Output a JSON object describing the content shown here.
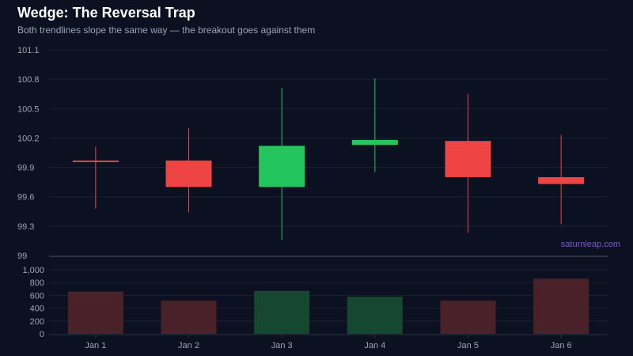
{
  "header": {
    "title": "Wedge: The Reversal Trap",
    "subtitle": "Both trendlines slope the same way — the breakout goes against them"
  },
  "watermark": "saturnleap.com",
  "colors": {
    "background": "#0b1120",
    "up": "#22c55e",
    "down": "#ef4444",
    "volume_up": "#16482f",
    "volume_down": "#4a2128",
    "grid": "#1a2233",
    "axis_text": "#9aa3b5",
    "watermark": "#7d5cc0"
  },
  "chart_data": [
    {
      "type": "candlestick",
      "title": "Wedge: The Reversal Trap",
      "subtitle": "Both trendlines slope the same way — the breakout goes against them",
      "categories": [
        "Jan 1",
        "Jan 2",
        "Jan 3",
        "Jan 4",
        "Jan 5",
        "Jan 6"
      ],
      "yticks": [
        "101.1",
        "100.8",
        "100.5",
        "100.2",
        "99.9",
        "99.6",
        "99.3",
        "99"
      ],
      "ylim": [
        99,
        101.1
      ],
      "grid": true,
      "series": [
        {
          "open": [
            99.97,
            99.97,
            99.7,
            100.13,
            100.17,
            99.8
          ],
          "high": [
            100.11,
            100.3,
            100.71,
            100.81,
            100.65,
            100.23
          ],
          "low": [
            99.48,
            99.44,
            99.16,
            99.85,
            99.23,
            99.32
          ],
          "close": [
            99.97,
            99.7,
            100.12,
            100.18,
            99.8,
            99.73
          ]
        }
      ]
    },
    {
      "type": "bar",
      "categories": [
        "Jan 1",
        "Jan 2",
        "Jan 3",
        "Jan 4",
        "Jan 5",
        "Jan 6"
      ],
      "yticks": [
        "1,000",
        "800",
        "600",
        "400",
        "200",
        "0"
      ],
      "ylim": [
        0,
        1000
      ],
      "grid": true,
      "values": [
        660,
        520,
        670,
        580,
        520,
        860
      ],
      "direction": [
        "down",
        "down",
        "up",
        "up",
        "down",
        "down"
      ]
    }
  ]
}
